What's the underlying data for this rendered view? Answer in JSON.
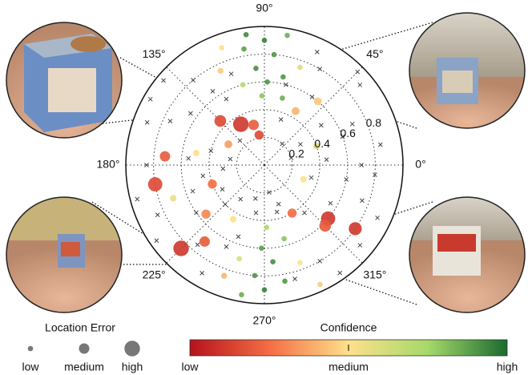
{
  "chart_data": {
    "type": "polar-scatter",
    "rlim": [
      0,
      1
    ],
    "rticks": [
      0.2,
      0.4,
      0.6,
      0.8
    ],
    "angle_ticks": [
      {
        "value": 0,
        "label": "0°"
      },
      {
        "value": 45,
        "label": "45°"
      },
      {
        "value": 90,
        "label": "90°"
      },
      {
        "value": 135,
        "label": "135°"
      },
      {
        "value": 180,
        "label": "180°"
      },
      {
        "value": 225,
        "label": "225°"
      },
      {
        "value": 270,
        "label": "270°"
      },
      {
        "value": 315,
        "label": "315°"
      }
    ],
    "grid": true,
    "colormap": [
      "#b5121b",
      "#f46d43",
      "#fee08b",
      "#a6d96a",
      "#1a6b2f"
    ],
    "series": [
      {
        "marker": "circle",
        "theta": [
          90,
          85,
          95,
          88,
          80,
          100,
          92,
          78,
          105,
          70,
          110,
          115,
          75,
          98,
          270,
          265,
          275,
          268,
          280,
          260,
          285,
          255,
          290,
          272,
          250,
          295,
          120,
          135,
          105,
          100,
          175,
          190,
          200,
          225,
          232,
          220,
          320,
          325,
          315,
          300,
          60,
          50,
          150,
          170,
          200,
          340,
          20,
          240
        ],
        "r": [
          0.9,
          0.8,
          0.7,
          0.6,
          0.95,
          0.85,
          0.5,
          0.65,
          0.6,
          0.75,
          0.9,
          0.75,
          0.5,
          0.95,
          0.9,
          0.8,
          0.7,
          0.6,
          0.85,
          0.95,
          0.55,
          0.7,
          0.75,
          0.45,
          0.85,
          0.95,
          0.34,
          0.45,
          0.3,
          0.22,
          0.72,
          0.8,
          0.4,
          0.85,
          0.7,
          0.55,
          0.6,
          0.8,
          0.62,
          0.4,
          0.45,
          0.6,
          0.3,
          0.5,
          0.7,
          0.3,
          0.4,
          0.45
        ],
        "confidence": [
          0.95,
          0.9,
          0.92,
          0.9,
          0.85,
          0.88,
          0.8,
          0.9,
          0.7,
          0.6,
          0.5,
          0.45,
          0.85,
          0.93,
          0.95,
          0.9,
          0.92,
          0.88,
          0.9,
          0.85,
          0.8,
          0.6,
          0.5,
          0.75,
          0.4,
          0.45,
          0.1,
          0.15,
          0.2,
          0.15,
          0.2,
          0.15,
          0.25,
          0.1,
          0.2,
          0.3,
          0.1,
          0.1,
          0.2,
          0.25,
          0.4,
          0.45,
          0.35,
          0.5,
          0.55,
          0.5,
          0.6,
          0.5
        ],
        "error": [
          0.1,
          0.1,
          0.1,
          0.1,
          0.1,
          0.1,
          0.1,
          0.1,
          0.1,
          0.1,
          0.1,
          0.15,
          0.1,
          0.1,
          0.1,
          0.1,
          0.1,
          0.1,
          0.1,
          0.1,
          0.1,
          0.1,
          0.1,
          0.1,
          0.15,
          0.1,
          0.9,
          0.6,
          0.5,
          0.4,
          0.5,
          0.8,
          0.4,
          0.9,
          0.5,
          0.4,
          0.8,
          0.7,
          0.6,
          0.4,
          0.3,
          0.3,
          0.3,
          0.2,
          0.2,
          0.2,
          0.2,
          0.2
        ]
      },
      {
        "marker": "cross",
        "color": "#444444",
        "theta": [
          10,
          25,
          40,
          55,
          70,
          130,
          145,
          160,
          175,
          190,
          205,
          215,
          235,
          250,
          285,
          300,
          335,
          350,
          5,
          30,
          60,
          120,
          150,
          165,
          195,
          210,
          240,
          255,
          285,
          310,
          330,
          355,
          15,
          45,
          75,
          135,
          155,
          185,
          225,
          245,
          305,
          345,
          20,
          50,
          110,
          140,
          180,
          200,
          230,
          260,
          280,
          320,
          340,
          0,
          35,
          65,
          125,
          170,
          215,
          290
        ],
        "r": [
          0.85,
          0.7,
          0.9,
          0.6,
          0.35,
          0.8,
          0.65,
          0.9,
          0.55,
          0.45,
          0.85,
          0.6,
          0.3,
          0.55,
          0.35,
          0.8,
          0.9,
          0.6,
          0.45,
          0.3,
          0.8,
          0.55,
          0.95,
          0.4,
          0.95,
          0.35,
          0.9,
          0.25,
          0.85,
          0.45,
          0.55,
          0.8,
          0.2,
          0.95,
          0.6,
          0.25,
          0.75,
          0.3,
          0.4,
          0.65,
          0.95,
          0.35,
          0.6,
          0.2,
          0.7,
          0.95,
          0.85,
          0.55,
          0.75,
          0.35,
          0.2,
          0.9,
          0.75,
          0.7,
          0.5,
          0.9,
          0.65,
          0.25,
          0.95,
          0.3
        ]
      }
    ],
    "size_legend": {
      "title": "Location Error",
      "items": [
        {
          "label": "low",
          "value": 0.1
        },
        {
          "label": "medium",
          "value": 0.5
        },
        {
          "label": "high",
          "value": 0.9
        }
      ]
    },
    "color_legend": {
      "title": "Confidence",
      "labels": [
        "low",
        "medium",
        "high"
      ]
    }
  }
}
